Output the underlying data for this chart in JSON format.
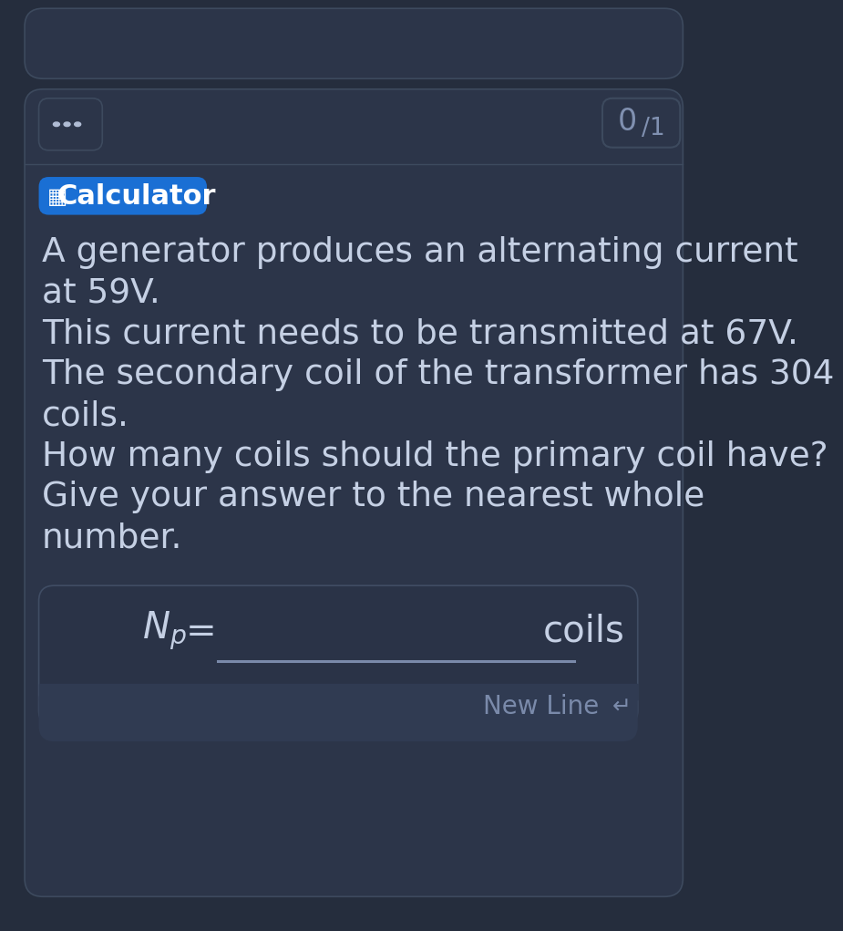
{
  "bg_color": "#252d3d",
  "card_color": "#2c3549",
  "card_border_color": "#3d4a5e",
  "calc_badge_color": "#1a6fd4",
  "calc_badge_text": "Calculator",
  "dots_color": "#b0bcd4",
  "text_color": "#c5d0e4",
  "body_lines": [
    "A generator produces an alternating current",
    "at 59V.",
    "This current needs to be transmitted at 67V.",
    "The secondary coil of the transformer has 304",
    "coils.",
    "How many coils should the primary coil have?",
    "Give your answer to the nearest whole",
    "number."
  ],
  "input_box_color": "#2a3347",
  "input_box_border": "#404d64",
  "input_line_color": "#7a8aaa",
  "newline_bar_color": "#303b52",
  "newline_text_color": "#7a8aaa",
  "score_text_color": "#8090b0"
}
